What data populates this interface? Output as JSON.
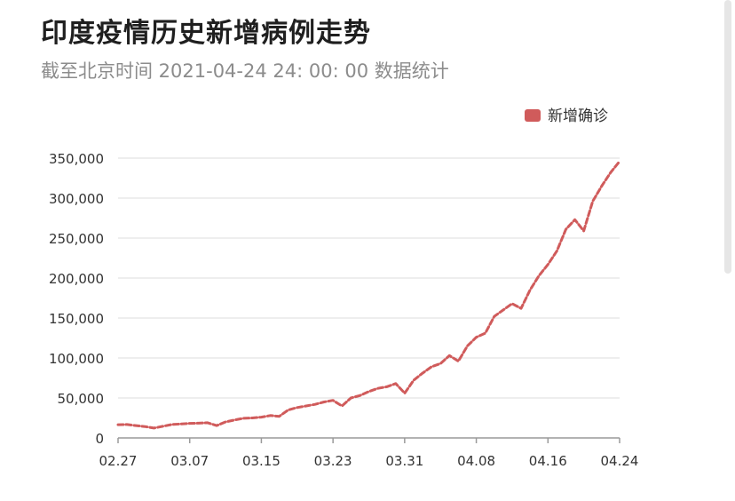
{
  "title": "印度疫情历史新增病例走势",
  "subtitle": "截至北京时间 2021-04-24 24: 00: 00 数据统计",
  "colors": {
    "series": "#d05b5b",
    "grid": "#dddddd",
    "axis": "#9a9a9a",
    "text": "#333333"
  },
  "chart_data": {
    "type": "line",
    "line_style": "dashed",
    "legend_position": "top-right",
    "grid": true,
    "ylim": [
      0,
      350000
    ],
    "y_ticks": [
      "350,000",
      "300,000",
      "250,000",
      "200,000",
      "150,000",
      "100,000",
      "50,000",
      "0"
    ],
    "x_tick_labels": [
      "02.27",
      "03.07",
      "03.15",
      "03.23",
      "03.31",
      "04.08",
      "04.16",
      "04.24"
    ],
    "series": [
      {
        "name": "新增确诊",
        "x": [
          "02.27",
          "02.28",
          "03.01",
          "03.02",
          "03.03",
          "03.04",
          "03.05",
          "03.06",
          "03.07",
          "03.08",
          "03.09",
          "03.10",
          "03.11",
          "03.12",
          "03.13",
          "03.14",
          "03.15",
          "03.16",
          "03.17",
          "03.18",
          "03.19",
          "03.20",
          "03.21",
          "03.22",
          "03.23",
          "03.24",
          "03.25",
          "03.26",
          "03.27",
          "03.28",
          "03.29",
          "03.30",
          "03.31",
          "04.01",
          "04.02",
          "04.03",
          "04.04",
          "04.05",
          "04.06",
          "04.07",
          "04.08",
          "04.09",
          "04.10",
          "04.11",
          "04.12",
          "04.13",
          "04.14",
          "04.15",
          "04.16",
          "04.17",
          "04.18",
          "04.19",
          "04.20",
          "04.21",
          "04.22",
          "04.23",
          "04.24"
        ],
        "values": [
          16500,
          16800,
          15500,
          14200,
          12300,
          14500,
          16800,
          17500,
          18200,
          18500,
          19000,
          15500,
          20000,
          22500,
          24500,
          25000,
          26000,
          28000,
          27000,
          35000,
          38000,
          40000,
          42000,
          45000,
          47000,
          40000,
          50000,
          53000,
          58000,
          62000,
          64000,
          68000,
          56000,
          72000,
          81000,
          89000,
          93000,
          103000,
          96000,
          115000,
          126000,
          131000,
          152000,
          160000,
          168000,
          162000,
          185000,
          203000,
          217000,
          234000,
          261000,
          273000,
          259000,
          296000,
          315000,
          332000,
          346000
        ]
      }
    ]
  }
}
